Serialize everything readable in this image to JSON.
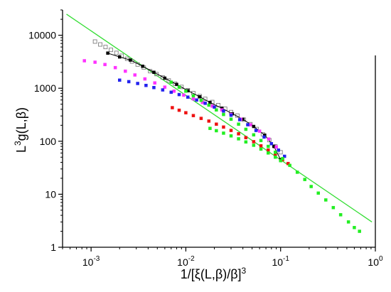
{
  "chart_data": {
    "type": "scatter",
    "xscale": "log",
    "yscale": "log",
    "xlim": [
      0.0005,
      1
    ],
    "ylim": [
      1,
      30000
    ],
    "grid": false,
    "xlabel": "1/[ξ(L,β)/β]³",
    "ylabel": "L³g(L,β)",
    "x_ticks": [
      {
        "value": 0.001,
        "label": "10",
        "exp": "-3"
      },
      {
        "value": 0.01,
        "label": "10",
        "exp": "-2"
      },
      {
        "value": 0.1,
        "label": "10",
        "exp": "-1"
      },
      {
        "value": 1,
        "label": "10",
        "exp": "0"
      }
    ],
    "y_ticks": [
      {
        "value": 1,
        "label": "1"
      },
      {
        "value": 10,
        "label": "10"
      },
      {
        "value": 100,
        "label": "100"
      },
      {
        "value": 1000,
        "label": "1000"
      },
      {
        "value": 10000,
        "label": "10000"
      }
    ],
    "fit_line": {
      "color": "#33dd33",
      "points": [
        [
          0.00055,
          25000
        ],
        [
          0.92,
          3.0
        ]
      ]
    },
    "series": [
      {
        "color": "#7f7f7f",
        "marker": "open-square",
        "points": [
          [
            0.0011,
            7600
          ],
          [
            0.00125,
            6700
          ],
          [
            0.00142,
            6000
          ],
          [
            0.00162,
            5300
          ],
          [
            0.00185,
            4650
          ],
          [
            0.0021,
            4100
          ],
          [
            0.0024,
            3600
          ],
          [
            0.0027,
            3200
          ],
          [
            0.0031,
            2800
          ],
          [
            0.0036,
            2450
          ],
          [
            0.0042,
            2100
          ],
          [
            0.0049,
            1850
          ],
          [
            0.0057,
            1600
          ],
          [
            0.0066,
            1400
          ],
          [
            0.0077,
            1220
          ],
          [
            0.009,
            1060
          ],
          [
            0.0105,
            920
          ],
          [
            0.012,
            810
          ],
          [
            0.014,
            710
          ],
          [
            0.016,
            630
          ],
          [
            0.019,
            550
          ],
          [
            0.022,
            480
          ],
          [
            0.026,
            410
          ],
          [
            0.03,
            355
          ],
          [
            0.035,
            305
          ],
          [
            0.041,
            255
          ],
          [
            0.048,
            210
          ],
          [
            0.056,
            170
          ],
          [
            0.065,
            135
          ],
          [
            0.076,
            105
          ],
          [
            0.088,
            80
          ],
          [
            0.1,
            62
          ]
        ]
      },
      {
        "color": "#000000",
        "marker": "filled-square",
        "points": [
          [
            0.0015,
            4600
          ],
          [
            0.002,
            3900
          ],
          [
            0.0026,
            3400
          ],
          [
            0.0035,
            2600
          ],
          [
            0.0046,
            2000
          ],
          [
            0.006,
            1550
          ],
          [
            0.008,
            1180
          ],
          [
            0.0105,
            900
          ],
          [
            0.014,
            690
          ],
          [
            0.018,
            540
          ],
          [
            0.024,
            420
          ],
          [
            0.031,
            330
          ],
          [
            0.04,
            260
          ],
          [
            0.052,
            190
          ],
          [
            0.068,
            130
          ],
          [
            0.085,
            80
          ],
          [
            0.1,
            45
          ]
        ]
      },
      {
        "color": "#ff33ff",
        "marker": "filled-square",
        "points": [
          [
            0.00085,
            3300
          ],
          [
            0.0011,
            3100
          ],
          [
            0.0014,
            2800
          ],
          [
            0.0018,
            2450
          ],
          [
            0.0023,
            2100
          ],
          [
            0.0029,
            1780
          ],
          [
            0.0037,
            1500
          ],
          [
            0.0047,
            1260
          ],
          [
            0.006,
            1050
          ],
          [
            0.0075,
            880
          ],
          [
            0.0095,
            740
          ],
          [
            0.012,
            630
          ],
          [
            0.015,
            540
          ],
          [
            0.019,
            460
          ],
          [
            0.024,
            390
          ],
          [
            0.03,
            320
          ],
          [
            0.038,
            260
          ],
          [
            0.048,
            205
          ],
          [
            0.06,
            155
          ],
          [
            0.075,
            110
          ],
          [
            0.09,
            78
          ]
        ]
      },
      {
        "color": "#2222ee",
        "marker": "filled-square",
        "points": [
          [
            0.002,
            1420
          ],
          [
            0.0025,
            1330
          ],
          [
            0.0031,
            1230
          ],
          [
            0.0038,
            1130
          ],
          [
            0.0046,
            1030
          ],
          [
            0.0057,
            930
          ],
          [
            0.007,
            840
          ],
          [
            0.0085,
            760
          ],
          [
            0.0105,
            680
          ],
          [
            0.013,
            600
          ],
          [
            0.016,
            520
          ],
          [
            0.02,
            440
          ],
          [
            0.025,
            370
          ],
          [
            0.03,
            310
          ],
          [
            0.037,
            255
          ],
          [
            0.045,
            205
          ],
          [
            0.055,
            160
          ],
          [
            0.067,
            120
          ],
          [
            0.08,
            90
          ],
          [
            0.095,
            68
          ],
          [
            0.11,
            52
          ]
        ]
      },
      {
        "color": "#ee1111",
        "marker": "filled-square",
        "points": [
          [
            0.0072,
            430
          ],
          [
            0.0085,
            385
          ],
          [
            0.01,
            345
          ],
          [
            0.012,
            305
          ],
          [
            0.0145,
            270
          ],
          [
            0.0175,
            240
          ],
          [
            0.021,
            210
          ],
          [
            0.025,
            185
          ],
          [
            0.03,
            160
          ],
          [
            0.036,
            138
          ],
          [
            0.043,
            117
          ],
          [
            0.052,
            98
          ],
          [
            0.062,
            82
          ],
          [
            0.074,
            68
          ],
          [
            0.088,
            56
          ],
          [
            0.105,
            45
          ],
          [
            0.12,
            38
          ]
        ]
      },
      {
        "color": "#22ee22",
        "marker": "filled-square",
        "points": [
          [
            0.007,
            1300
          ],
          [
            0.0085,
            1050
          ],
          [
            0.01,
            880
          ],
          [
            0.012,
            720
          ],
          [
            0.0145,
            590
          ],
          [
            0.0175,
            480
          ],
          [
            0.021,
            390
          ],
          [
            0.025,
            320
          ],
          [
            0.03,
            260
          ],
          [
            0.036,
            210
          ],
          [
            0.043,
            168
          ],
          [
            0.052,
            132
          ],
          [
            0.062,
            103
          ],
          [
            0.074,
            80
          ],
          [
            0.088,
            62
          ],
          [
            0.105,
            47
          ],
          [
            0.125,
            35
          ],
          [
            0.15,
            26
          ],
          [
            0.18,
            19
          ],
          [
            0.21,
            14
          ],
          [
            0.25,
            10.5
          ],
          [
            0.3,
            7.8
          ],
          [
            0.36,
            5.6
          ],
          [
            0.43,
            4.1
          ],
          [
            0.52,
            3.0
          ],
          [
            0.6,
            2.35
          ],
          [
            0.68,
            2.0
          ]
        ]
      },
      {
        "color": "#22ee22",
        "marker": "filled-square",
        "points": [
          [
            0.018,
            175
          ],
          [
            0.021,
            158
          ],
          [
            0.025,
            142
          ],
          [
            0.03,
            126
          ],
          [
            0.036,
            111
          ],
          [
            0.043,
            97
          ],
          [
            0.052,
            84
          ],
          [
            0.062,
            71
          ],
          [
            0.074,
            60
          ],
          [
            0.088,
            50
          ],
          [
            0.1,
            43
          ]
        ]
      }
    ]
  }
}
